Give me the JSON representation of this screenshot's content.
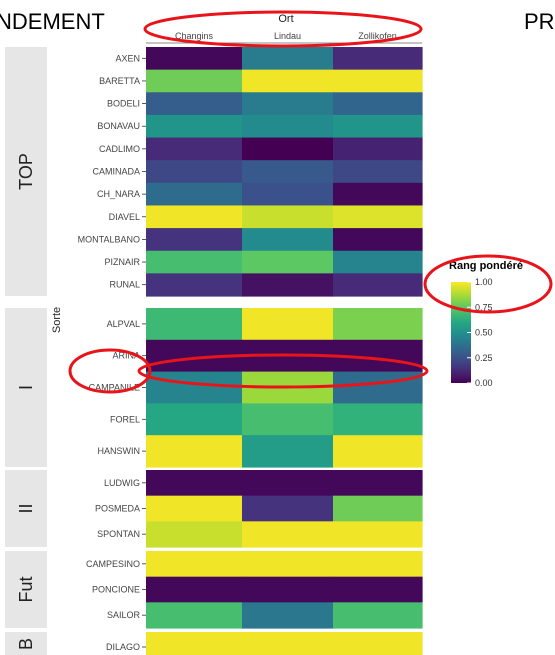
{
  "header": {
    "left_title_fragment": "NDEMENT",
    "right_title_fragment": "PR"
  },
  "chart_data": {
    "type": "heatmap",
    "x_title": "Ort",
    "y_title": "Sorte",
    "columns": [
      "Changins",
      "Lindau",
      "Zollikofen"
    ],
    "groups": [
      {
        "label": "TOP",
        "rows": [
          "AXEN",
          "BARETTA",
          "BODELI",
          "BONAVAU",
          "CADLIMO",
          "CAMINADA",
          "CH_NARA",
          "DIAVEL",
          "MONTALBANO",
          "PIZNAIR",
          "RUNAL"
        ]
      },
      {
        "label": "I",
        "rows": [
          "ALPVAL",
          "ARINA",
          "CAMPANILE",
          "FOREL",
          "HANSWIN"
        ]
      },
      {
        "label": "II",
        "rows": [
          "LUDWIG",
          "POSMEDA",
          "SPONTAN"
        ]
      },
      {
        "label": "Fut",
        "rows": [
          "CAMPESINO",
          "PONCIONE",
          "SAILOR"
        ]
      },
      {
        "label": "B",
        "rows": [
          "DILAGO"
        ]
      }
    ],
    "values": {
      "AXEN": [
        0.02,
        0.42,
        0.12
      ],
      "BARETTA": [
        0.78,
        0.98,
        0.98
      ],
      "BODELI": [
        0.3,
        0.42,
        0.33
      ],
      "BONAVAU": [
        0.52,
        0.48,
        0.52
      ],
      "CADLIMO": [
        0.12,
        0.0,
        0.1
      ],
      "CAMINADA": [
        0.22,
        0.28,
        0.22
      ],
      "CH_NARA": [
        0.35,
        0.25,
        0.02
      ],
      "DIAVEL": [
        0.98,
        0.92,
        0.95
      ],
      "MONTALBANO": [
        0.15,
        0.48,
        0.02
      ],
      "PIZNAIR": [
        0.7,
        0.75,
        0.45
      ],
      "RUNAL": [
        0.15,
        0.05,
        0.12
      ],
      "ALPVAL": [
        0.68,
        0.98,
        0.8
      ],
      "ARINA": [
        0.02,
        0.02,
        0.02
      ],
      "CAMPANILE": [
        0.45,
        0.85,
        0.35
      ],
      "FOREL": [
        0.6,
        0.7,
        0.65
      ],
      "HANSWIN": [
        0.98,
        0.55,
        0.98
      ],
      "LUDWIG": [
        0.02,
        0.02,
        0.02
      ],
      "POSMEDA": [
        0.98,
        0.15,
        0.78
      ],
      "SPONTAN": [
        0.92,
        0.98,
        0.98
      ],
      "CAMPESINO": [
        0.98,
        0.98,
        0.98
      ],
      "PONCIONE": [
        0.02,
        0.02,
        0.02
      ],
      "SAILOR": [
        0.7,
        0.4,
        0.7
      ],
      "DILAGO": [
        0.98,
        0.98,
        0.98
      ]
    },
    "legend": {
      "title": "Rang pondéré",
      "ticks": [
        "1.00",
        "0.75",
        "0.50",
        "0.25",
        "0.00"
      ],
      "tick_values": [
        1.0,
        0.75,
        0.5,
        0.25,
        0.0
      ],
      "placement": "right"
    },
    "colorscale": "viridis",
    "value_range": [
      0,
      1
    ]
  },
  "annotations": {
    "circle_color": "#e8141a",
    "circled": [
      "column-headers",
      "legend-title",
      "HANSWIN-label",
      "HANSWIN-row"
    ]
  }
}
